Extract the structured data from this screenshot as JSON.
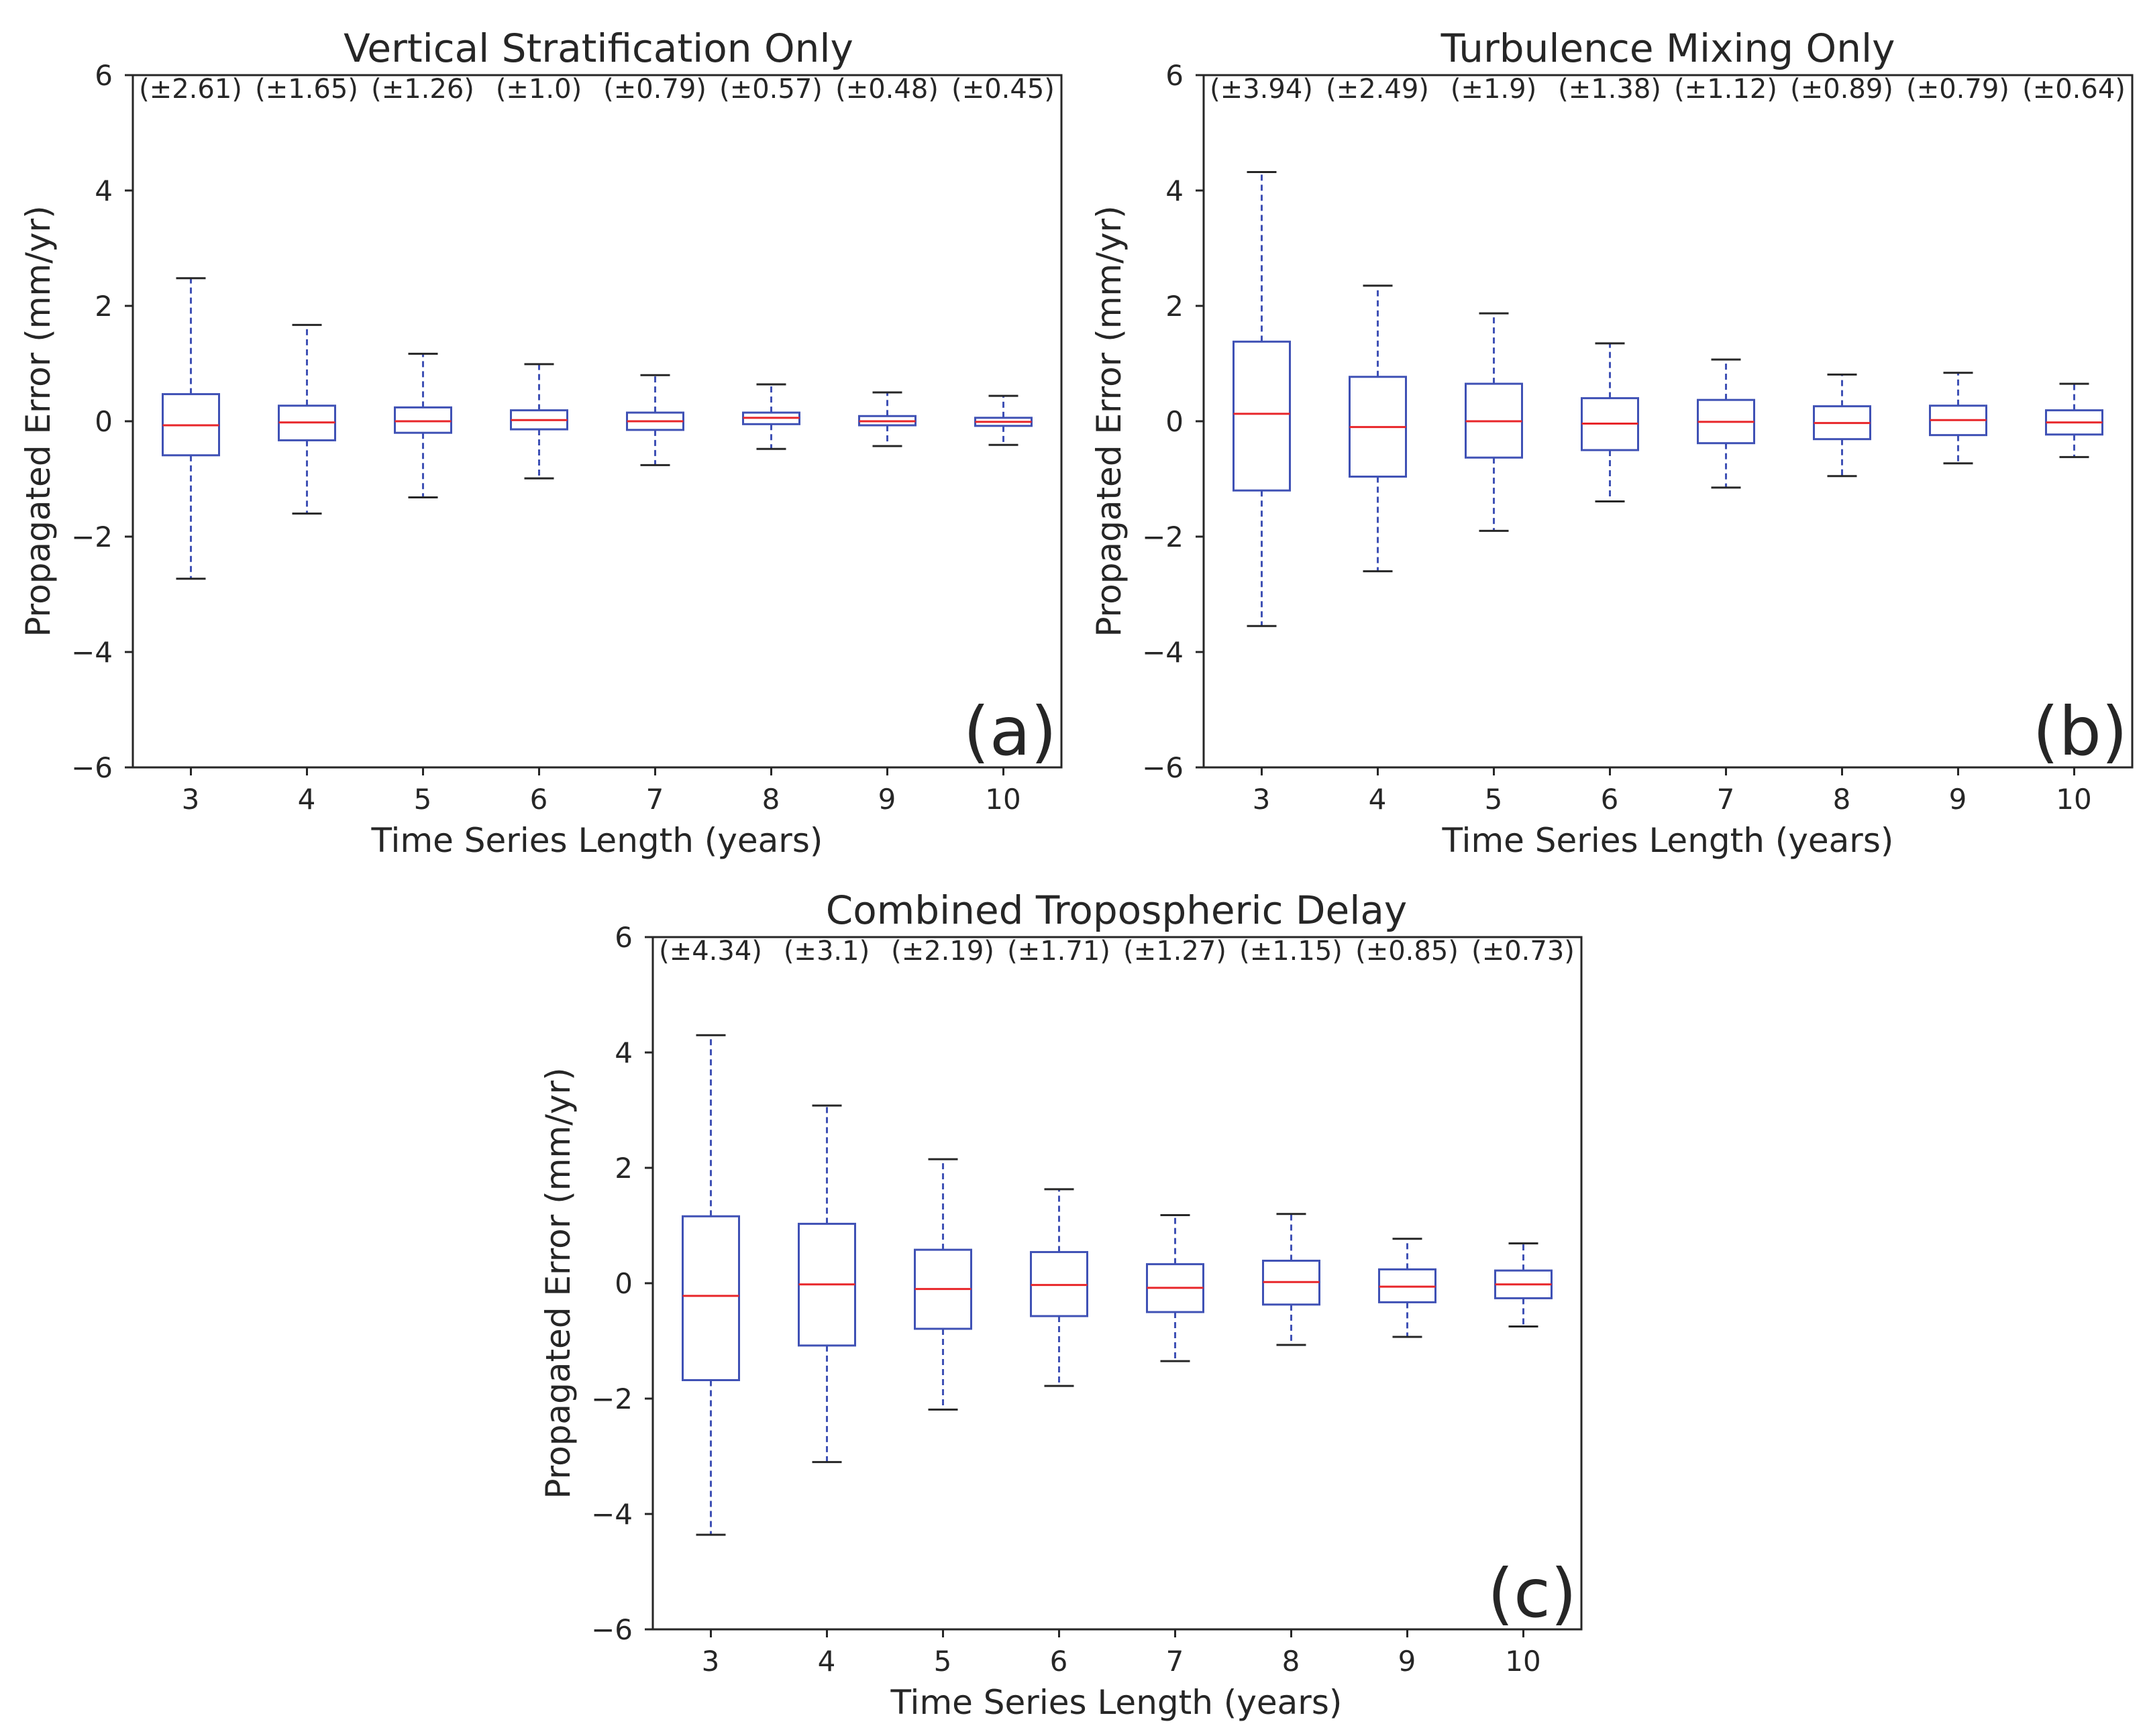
{
  "chart_data": [
    {
      "type": "box",
      "panel": "(a)",
      "title": "Vertical Stratification Only",
      "xlabel": "Time Series Length (years)",
      "ylabel": "Propagated Error (mm/yr)",
      "ylim": [
        -6,
        6
      ],
      "yticks": [
        "6",
        "4",
        "2",
        "0",
        "−2",
        "−4",
        "−6"
      ],
      "categories": [
        "3",
        "4",
        "5",
        "6",
        "7",
        "8",
        "9",
        "10"
      ],
      "annotations": [
        "(±2.61)",
        "(±1.65)",
        "(±1.26)",
        "(±1.0)",
        "(±0.79)",
        "(±0.57)",
        "(±0.48)",
        "(±0.45)"
      ],
      "boxes": [
        {
          "whislo": -2.73,
          "q1": -0.59,
          "med": -0.07,
          "q3": 0.47,
          "whishi": 2.48
        },
        {
          "whislo": -1.6,
          "q1": -0.33,
          "med": -0.02,
          "q3": 0.27,
          "whishi": 1.67
        },
        {
          "whislo": -1.32,
          "q1": -0.2,
          "med": 0.0,
          "q3": 0.24,
          "whishi": 1.17
        },
        {
          "whislo": -0.99,
          "q1": -0.14,
          "med": 0.02,
          "q3": 0.19,
          "whishi": 0.99
        },
        {
          "whislo": -0.76,
          "q1": -0.15,
          "med": 0.0,
          "q3": 0.15,
          "whishi": 0.8
        },
        {
          "whislo": -0.48,
          "q1": -0.05,
          "med": 0.06,
          "q3": 0.15,
          "whishi": 0.64
        },
        {
          "whislo": -0.43,
          "q1": -0.07,
          "med": 0.0,
          "q3": 0.09,
          "whishi": 0.5
        },
        {
          "whislo": -0.41,
          "q1": -0.08,
          "med": -0.01,
          "q3": 0.06,
          "whishi": 0.44
        }
      ]
    },
    {
      "type": "box",
      "panel": "(b)",
      "title": "Turbulence Mixing Only",
      "xlabel": "Time Series Length (years)",
      "ylabel": "Propagated Error (mm/yr)",
      "ylim": [
        -6,
        6
      ],
      "yticks": [
        "6",
        "4",
        "2",
        "0",
        "−2",
        "−4",
        "−6"
      ],
      "categories": [
        "3",
        "4",
        "5",
        "6",
        "7",
        "8",
        "9",
        "10"
      ],
      "annotations": [
        "(±3.94)",
        "(±2.49)",
        "(±1.9)",
        "(±1.38)",
        "(±1.12)",
        "(±0.89)",
        "(±0.79)",
        "(±0.64)"
      ],
      "boxes": [
        {
          "whislo": -3.55,
          "q1": -1.2,
          "med": 0.13,
          "q3": 1.38,
          "whishi": 4.32
        },
        {
          "whislo": -2.6,
          "q1": -0.96,
          "med": -0.1,
          "q3": 0.77,
          "whishi": 2.35
        },
        {
          "whislo": -1.9,
          "q1": -0.63,
          "med": 0.0,
          "q3": 0.65,
          "whishi": 1.87
        },
        {
          "whislo": -1.39,
          "q1": -0.5,
          "med": -0.04,
          "q3": 0.4,
          "whishi": 1.35
        },
        {
          "whislo": -1.15,
          "q1": -0.38,
          "med": -0.01,
          "q3": 0.37,
          "whishi": 1.07
        },
        {
          "whislo": -0.95,
          "q1": -0.31,
          "med": -0.03,
          "q3": 0.26,
          "whishi": 0.81
        },
        {
          "whislo": -0.73,
          "q1": -0.24,
          "med": 0.02,
          "q3": 0.27,
          "whishi": 0.84
        },
        {
          "whislo": -0.62,
          "q1": -0.23,
          "med": -0.02,
          "q3": 0.19,
          "whishi": 0.65
        }
      ]
    },
    {
      "type": "box",
      "panel": "(c)",
      "title": "Combined Tropospheric Delay",
      "xlabel": "Time Series Length (years)",
      "ylabel": "Propagated Error (mm/yr)",
      "ylim": [
        -6,
        6
      ],
      "yticks": [
        "6",
        "4",
        "2",
        "0",
        "−2",
        "−4",
        "−6"
      ],
      "categories": [
        "3",
        "4",
        "5",
        "6",
        "7",
        "8",
        "9",
        "10"
      ],
      "annotations": [
        "(±4.34)",
        "(±3.1)",
        "(±2.19)",
        "(±1.71)",
        "(±1.27)",
        "(±1.15)",
        "(±0.85)",
        "(±0.73)"
      ],
      "boxes": [
        {
          "whislo": -4.36,
          "q1": -1.68,
          "med": -0.22,
          "q3": 1.16,
          "whishi": 4.3
        },
        {
          "whislo": -3.1,
          "q1": -1.08,
          "med": -0.02,
          "q3": 1.03,
          "whishi": 3.08
        },
        {
          "whislo": -2.19,
          "q1": -0.79,
          "med": -0.1,
          "q3": 0.58,
          "whishi": 2.15
        },
        {
          "whislo": -1.78,
          "q1": -0.57,
          "med": -0.03,
          "q3": 0.54,
          "whishi": 1.63
        },
        {
          "whislo": -1.35,
          "q1": -0.5,
          "med": -0.08,
          "q3": 0.33,
          "whishi": 1.18
        },
        {
          "whislo": -1.07,
          "q1": -0.37,
          "med": 0.02,
          "q3": 0.39,
          "whishi": 1.2
        },
        {
          "whislo": -0.93,
          "q1": -0.33,
          "med": -0.06,
          "q3": 0.24,
          "whishi": 0.77
        },
        {
          "whislo": -0.75,
          "q1": -0.26,
          "med": -0.02,
          "q3": 0.22,
          "whishi": 0.69
        }
      ]
    }
  ],
  "colors": {
    "box": "#3f51b5",
    "median": "#e8262a",
    "whisker": "#3f51b5",
    "cap": "#262626",
    "axis": "#262626",
    "text": "#262626"
  }
}
